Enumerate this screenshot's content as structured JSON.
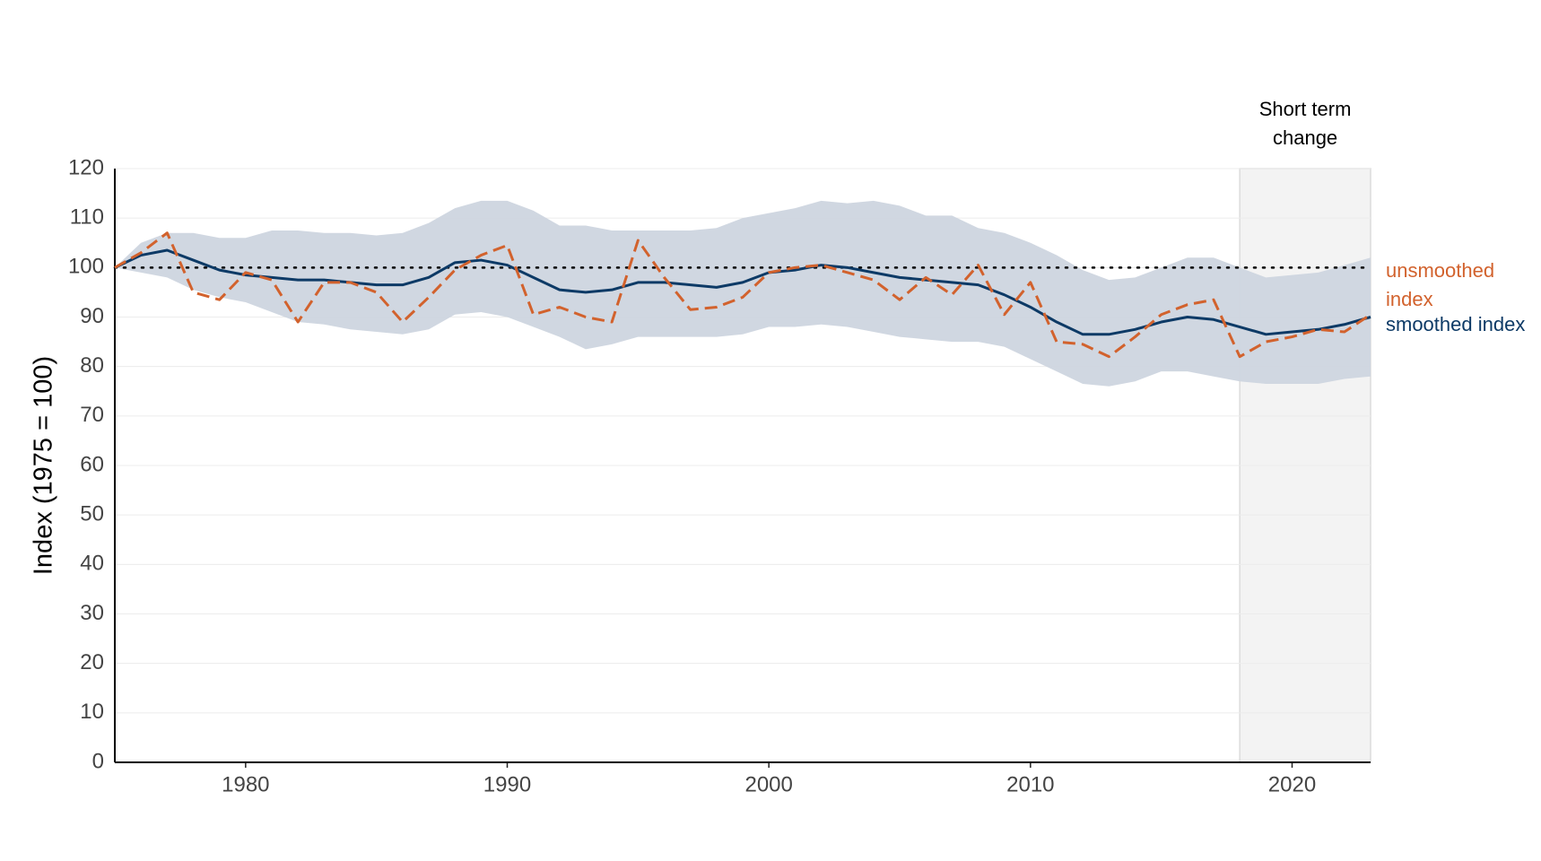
{
  "chart_data": {
    "type": "line",
    "ylabel": "Index (1975 = 100)",
    "x": [
      1975,
      1976,
      1977,
      1978,
      1979,
      1980,
      1981,
      1982,
      1983,
      1984,
      1985,
      1986,
      1987,
      1988,
      1989,
      1990,
      1991,
      1992,
      1993,
      1994,
      1995,
      1996,
      1997,
      1998,
      1999,
      2000,
      2001,
      2002,
      2003,
      2004,
      2005,
      2006,
      2007,
      2008,
      2009,
      2010,
      2011,
      2012,
      2013,
      2014,
      2015,
      2016,
      2017,
      2018,
      2019,
      2020,
      2021,
      2022,
      2023
    ],
    "xlim": [
      1975,
      2023
    ],
    "xticks": [
      1980,
      1990,
      2000,
      2010,
      2020
    ],
    "ylim": [
      0,
      120
    ],
    "yticks": [
      0,
      10,
      20,
      30,
      40,
      50,
      60,
      70,
      80,
      90,
      100,
      110,
      120
    ],
    "grid": true,
    "series": [
      {
        "name": "unsmoothed index",
        "color": "#d2622d",
        "dashed": true,
        "values": [
          100,
          103,
          107,
          95,
          93.5,
          99,
          97.5,
          89,
          97,
          97,
          95,
          89,
          94,
          99.5,
          102.5,
          104.5,
          90.5,
          92,
          90,
          89,
          105.5,
          98,
          91.5,
          92,
          94,
          99,
          100,
          100.5,
          99,
          97.5,
          93.5,
          98,
          94.5,
          100.5,
          90.5,
          97,
          85,
          84.5,
          82,
          86,
          90.5,
          92.5,
          93.5,
          82,
          85,
          86,
          87.5,
          87,
          90.5
        ]
      },
      {
        "name": "smoothed index",
        "color": "#0d3a66",
        "dashed": false,
        "values": [
          100,
          102.5,
          103.5,
          101.5,
          99.5,
          98.5,
          98,
          97.5,
          97.5,
          97,
          96.5,
          96.5,
          98,
          101,
          101.5,
          100.5,
          98,
          95.5,
          95,
          95.5,
          97,
          97,
          96.5,
          96,
          97,
          99,
          99.5,
          100.5,
          100,
          99,
          98,
          97.5,
          97,
          96.5,
          94.5,
          92,
          89,
          86.5,
          86.5,
          87.5,
          89,
          90,
          89.5,
          88,
          86.5,
          87,
          87.5,
          88.5,
          90
        ]
      }
    ],
    "band": {
      "color": "#cdd5df",
      "upper": [
        100,
        105,
        107,
        107,
        106,
        106,
        107.5,
        107.5,
        107,
        107,
        106.5,
        107,
        109,
        112,
        113.5,
        113.5,
        111.5,
        108.5,
        108.5,
        107.5,
        107.5,
        107.5,
        107.5,
        108,
        110,
        111,
        112,
        113.5,
        113,
        113.5,
        112.5,
        110.5,
        110.5,
        108,
        107,
        105,
        102.5,
        99.5,
        97.5,
        98,
        100,
        102,
        102,
        100,
        98,
        98.5,
        99,
        100.5,
        102
      ],
      "lower": [
        100,
        99,
        98,
        95.5,
        94,
        93,
        91,
        89,
        88.5,
        87.5,
        87,
        86.5,
        87.5,
        90.5,
        91,
        90,
        88,
        86,
        83.5,
        84.5,
        86,
        86,
        86,
        86,
        86.5,
        88,
        88,
        88.5,
        88,
        87,
        86,
        85.5,
        85,
        85,
        84,
        81.5,
        79,
        76.5,
        76,
        77,
        79,
        79,
        78,
        77,
        76.5,
        76.5,
        76.5,
        77.5,
        78
      ]
    },
    "reference_line": {
      "value": 100
    },
    "highlight": {
      "label": "Short term change",
      "xlim": [
        2018,
        2023
      ],
      "color": "#f3f3f3"
    }
  }
}
